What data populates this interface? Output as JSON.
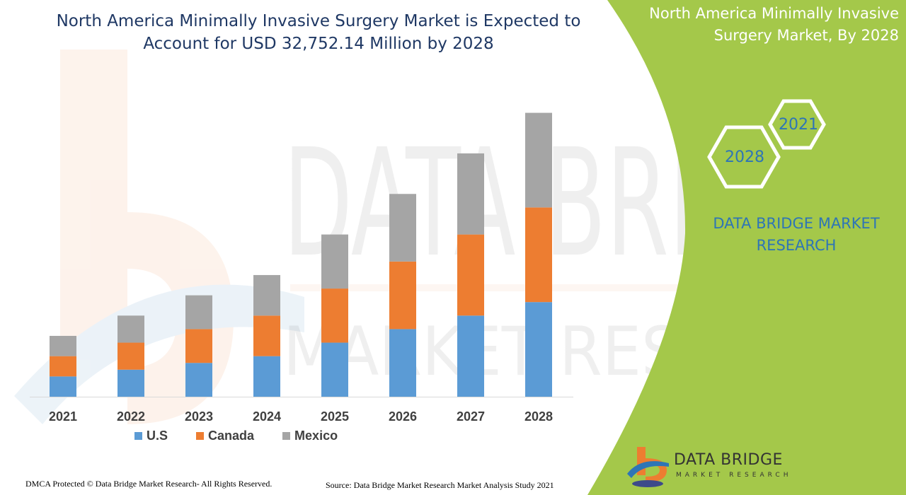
{
  "title": "North America Minimally Invasive Surgery Market is Expected to Account for USD 32,752.14 Million by 2028",
  "side_panel": {
    "title": "North America Minimally Invasive Surgery Market, By 2028",
    "hex_year_1": "2021",
    "hex_year_2": "2028",
    "brand_text": "DATA BRIDGE MARKET RESEARCH",
    "color": "#a4c84a"
  },
  "logo": {
    "name": "DATA BRIDGE",
    "subtitle": "MARKET RESEARCH"
  },
  "footer": {
    "copyright": "DMCA Protected © Data Bridge Market Research- All Rights Reserved.",
    "source": "Source: Data Bridge Market Research Market Analysis Study 2021"
  },
  "chart_data": {
    "type": "bar",
    "stacked": true,
    "categories": [
      "2021",
      "2022",
      "2023",
      "2024",
      "2025",
      "2026",
      "2027",
      "2028"
    ],
    "series": [
      {
        "name": "U.S",
        "color": "#5b9bd5",
        "values": [
          1.5,
          2.0,
          2.5,
          3.0,
          4.0,
          5.0,
          6.0,
          7.0
        ]
      },
      {
        "name": "Canada",
        "color": "#ed7d31",
        "values": [
          1.5,
          2.0,
          2.5,
          3.0,
          4.0,
          5.0,
          6.0,
          7.0
        ]
      },
      {
        "name": "Mexico",
        "color": "#a5a5a5",
        "values": [
          1.5,
          2.0,
          2.5,
          3.0,
          4.0,
          5.0,
          6.0,
          7.0
        ]
      }
    ],
    "ylim": [
      0,
      21.5
    ],
    "grid": false,
    "legend": "bottom"
  }
}
